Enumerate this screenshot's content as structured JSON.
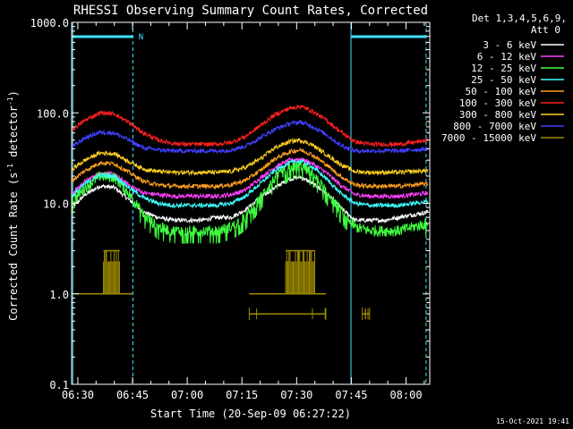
{
  "chart_data": {
    "type": "line",
    "title": "RHESSI Observing Summary Count Rates, Corrected",
    "xlabel": "Start Time (20-Sep-09 06:27:22)",
    "ylabel_main": "Corrected Count Rate (s",
    "ylabel_sup1": "-1",
    "ylabel_mid": " detector",
    "ylabel_sup2": "-1",
    "ylabel_end": ")",
    "y_scale": "log",
    "ylim": [
      0.1,
      1000
    ],
    "xlim_minutes": [
      388.3,
      486.5
    ],
    "x_ticks": [
      {
        "label": "06:30",
        "minute": 390
      },
      {
        "label": "06:45",
        "minute": 405
      },
      {
        "label": "07:00",
        "minute": 420
      },
      {
        "label": "07:15",
        "minute": 435
      },
      {
        "label": "07:30",
        "minute": 450
      },
      {
        "label": "07:45",
        "minute": 465
      },
      {
        "label": "08:00",
        "minute": 480
      }
    ],
    "y_ticks": [
      {
        "label": "0.1",
        "value": 0.1
      },
      {
        "label": "1.0",
        "value": 1
      },
      {
        "label": "10.0",
        "value": 10
      },
      {
        "label": "100.0",
        "value": 100
      },
      {
        "label": "1000.0",
        "value": 1000
      }
    ],
    "legend_header": [
      "Det 1,3,4,5,6,9,",
      "Att 0"
    ],
    "legend_position": "top-right",
    "series": [
      {
        "name": "3 - 6 keV",
        "color": "#ffffff",
        "x": [
          388.5,
          392,
          396,
          400,
          404,
          408,
          412,
          416,
          420,
          424,
          428,
          432,
          436,
          440,
          444,
          448,
          451,
          454,
          458,
          462,
          466,
          470,
          474,
          478,
          482,
          486
        ],
        "y": [
          9,
          12.5,
          15.5,
          15,
          11,
          8,
          7,
          6.5,
          6.5,
          6.5,
          7,
          7,
          8.5,
          11.5,
          15,
          18.5,
          19.5,
          17,
          13,
          9,
          6.5,
          6.5,
          6.5,
          7,
          7.5,
          8
        ]
      },
      {
        "name": "6 - 12 keV",
        "color": "#ff40ff",
        "x": [
          388.5,
          392,
          396,
          400,
          404,
          408,
          412,
          416,
          420,
          424,
          428,
          432,
          436,
          440,
          444,
          448,
          451,
          454,
          458,
          462,
          466,
          470,
          474,
          478,
          482,
          486
        ],
        "y": [
          13,
          17.5,
          21.5,
          21,
          16,
          13,
          12.5,
          12,
          12,
          12,
          12,
          12.5,
          14,
          19,
          25,
          30,
          31,
          28,
          22,
          16,
          12.5,
          12,
          12,
          12,
          12.5,
          13
        ]
      },
      {
        "name": "12 - 25 keV",
        "color": "#40ff40",
        "x": [
          388.5,
          392,
          396,
          400,
          404,
          408,
          412,
          416,
          420,
          424,
          428,
          432,
          436,
          440,
          444,
          448,
          451,
          454,
          458,
          462,
          466,
          470,
          474,
          478,
          482,
          486
        ],
        "y": [
          10.5,
          15,
          20,
          19.5,
          13,
          7.5,
          5.5,
          5,
          5,
          5,
          5,
          5.5,
          7,
          11.5,
          19,
          25,
          26.5,
          22,
          14,
          8.5,
          5.5,
          5,
          5,
          5,
          5.5,
          6
        ]
      },
      {
        "name": "25 - 50 keV",
        "color": "#40ffff",
        "x": [
          388.5,
          392,
          396,
          400,
          404,
          408,
          412,
          416,
          420,
          424,
          428,
          432,
          436,
          440,
          444,
          448,
          451,
          454,
          458,
          462,
          466,
          470,
          474,
          478,
          482,
          486
        ],
        "y": [
          12,
          16.5,
          20.5,
          20,
          15,
          11.5,
          10,
          9.5,
          9.5,
          9.5,
          9.5,
          10,
          12,
          16.5,
          23,
          28,
          29.5,
          26,
          19,
          13,
          10,
          9.5,
          9.5,
          9.5,
          10,
          10.5
        ]
      },
      {
        "name": "50 - 100 keV",
        "color": "#ffa020",
        "x": [
          388.5,
          392,
          396,
          400,
          404,
          408,
          412,
          416,
          420,
          424,
          428,
          432,
          436,
          440,
          444,
          448,
          451,
          454,
          458,
          462,
          466,
          470,
          474,
          478,
          482,
          486
        ],
        "y": [
          18,
          23,
          28,
          27.5,
          22,
          17.5,
          16,
          15.5,
          15.5,
          15.5,
          15.5,
          16,
          18,
          23,
          31,
          37,
          39,
          35,
          27,
          20,
          16,
          15.5,
          15.5,
          15.5,
          16,
          16.5
        ]
      },
      {
        "name": "100 - 300 keV",
        "color": "#ff2020",
        "x": [
          388.5,
          392,
          396,
          400,
          404,
          408,
          412,
          416,
          420,
          424,
          428,
          432,
          436,
          440,
          444,
          448,
          451,
          454,
          458,
          462,
          466,
          470,
          474,
          478,
          482,
          486
        ],
        "y": [
          65,
          83,
          100,
          98,
          78,
          60,
          50,
          46,
          45,
          45,
          45,
          47,
          55,
          72,
          95,
          112,
          118,
          106,
          84,
          62,
          48,
          45,
          45,
          45,
          47,
          50
        ]
      },
      {
        "name": "300 - 800 keV",
        "color": "#ffd020",
        "x": [
          388.5,
          392,
          396,
          400,
          404,
          408,
          412,
          416,
          420,
          424,
          428,
          432,
          436,
          440,
          444,
          448,
          451,
          454,
          458,
          462,
          466,
          470,
          474,
          478,
          482,
          486
        ],
        "y": [
          24,
          30,
          36,
          35.5,
          29,
          24,
          22.5,
          22,
          22,
          22,
          22,
          22.5,
          25,
          31,
          41,
          48,
          50,
          45,
          35,
          27,
          22.5,
          22,
          22,
          22,
          22.5,
          23
        ]
      },
      {
        "name": "800 - 7000 keV",
        "color": "#4040ff",
        "x": [
          388.5,
          392,
          396,
          400,
          404,
          408,
          412,
          416,
          420,
          424,
          428,
          432,
          436,
          440,
          444,
          448,
          451,
          454,
          458,
          462,
          466,
          470,
          474,
          478,
          482,
          486
        ],
        "y": [
          42,
          53,
          61,
          60,
          50,
          41,
          39,
          38,
          38,
          38,
          38,
          39,
          43,
          53,
          66,
          76,
          79,
          72,
          58,
          44,
          38,
          38,
          38,
          38,
          39,
          40
        ]
      },
      {
        "name": "7000 - 15000 keV",
        "color": "#a08c00",
        "segments": [
          {
            "x": [
              389,
              405
            ],
            "base": 1.0,
            "bursts": [
              {
                "from": 397,
                "to": 401.5,
                "top": 3.0
              }
            ]
          },
          {
            "x": [
              437,
              458
            ],
            "base": 1.0,
            "bursts": [
              {
                "from": 447,
                "to": 455,
                "top": 3.0
              }
            ]
          },
          {
            "x": [
              437,
              458
            ],
            "base": 0.6,
            "bursts": []
          },
          {
            "x": [
              468,
              470
            ],
            "base": 0.6,
            "bursts": []
          }
        ]
      }
    ],
    "saa_bar_color": "#40e0ff",
    "flag_letter": "N",
    "night_intervals": [
      [
        388.6,
        405.1
      ],
      [
        464.9,
        485.5
      ]
    ]
  },
  "footer": {
    "timestamp": "15-Oct-2021 19:41"
  }
}
